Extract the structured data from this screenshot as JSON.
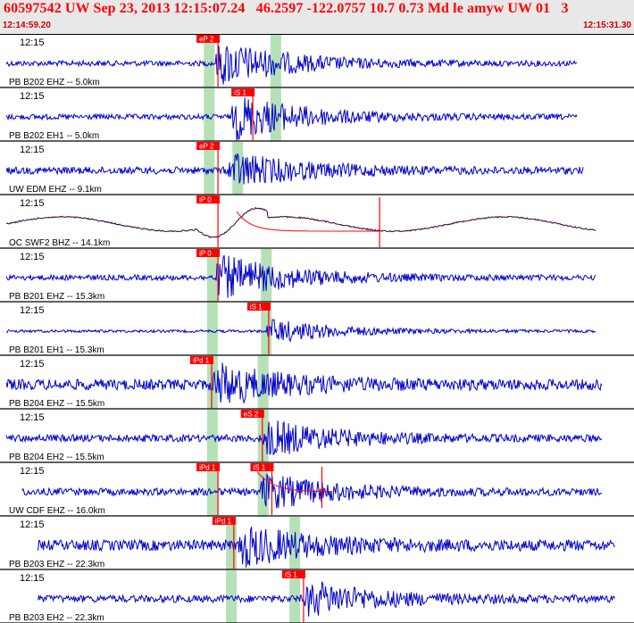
{
  "header": {
    "title": "60597542 UW Sep 23, 2013 12:15:07.24   46.2597 -122.0757 10.7 0.73 Md le amyw UW 01   3",
    "start_time": "12:14:59.20",
    "end_time": "12:15:31.30"
  },
  "colors": {
    "trace": "#0000cc",
    "trace_dark": "#330033",
    "pick": "#ff0000",
    "pick_window": "#b6e0b6",
    "divider": "#000000",
    "header_bg": "#e8e8e8",
    "title": "#ff0000"
  },
  "panels": [
    {
      "time": "12:15",
      "channel": "PB B202 EHZ -- 5.0km",
      "pick_label": "eP 2",
      "pick_time_s": 6.2,
      "windows_s": [
        6.6,
        8.7
      ],
      "signal_start_s": 6.8,
      "amplitude": "high",
      "trace_span_s": [
        0.2,
        18.2
      ],
      "style": "standard"
    },
    {
      "time": "12:15",
      "channel": "PB B202 EH1 -- 5.0km",
      "pick_label": "iS 1",
      "pick_time_s": 7.3,
      "windows_s": [
        6.6,
        8.7
      ],
      "signal_start_s": 7.3,
      "amplitude": "high",
      "trace_span_s": [
        0.2,
        18.2
      ],
      "style": "standard"
    },
    {
      "time": "12:15",
      "channel": "UW EDM EHZ -- 9.1km",
      "pick_label": "eP 2",
      "pick_time_s": 6.2,
      "windows_s": [
        6.6,
        7.5
      ],
      "signal_start_s": 7.2,
      "amplitude": "medium",
      "trace_span_s": [
        0.2,
        18.4
      ],
      "style": "standard"
    },
    {
      "time": "12:15",
      "channel": "OC SWF2 BHZ -- 14.1km",
      "pick_label": "iP 0",
      "pick_time_s": 6.2,
      "windows_s": [],
      "signal_start_s": 6.2,
      "amplitude": "long-period",
      "trace_span_s": [
        0.2,
        18.8
      ],
      "style": "long-period"
    },
    {
      "time": "12:15",
      "channel": "PB B201 EHZ -- 15.3km",
      "pick_label": "iP 0",
      "pick_time_s": 6.2,
      "windows_s": [
        6.7,
        8.4
      ],
      "signal_start_s": 6.8,
      "amplitude": "high",
      "trace_span_s": [
        0.2,
        18.8
      ],
      "style": "standard"
    },
    {
      "time": "12:15",
      "channel": "PB B201 EH1 -- 15.3km",
      "pick_label": "iS 1",
      "pick_time_s": 7.8,
      "windows_s": [
        6.7,
        8.4
      ],
      "signal_start_s": 8.4,
      "amplitude": "low",
      "trace_span_s": [
        0.2,
        18.8
      ],
      "style": "standard"
    },
    {
      "time": "12:15",
      "channel": "PB B204 EHZ -- 15.5km",
      "pick_label": "iPd 1",
      "pick_time_s": 6.0,
      "windows_s": [
        6.7,
        8.3
      ],
      "signal_start_s": 6.7,
      "amplitude": "noisy",
      "trace_span_s": [
        0.2,
        19.0
      ],
      "style": "standard"
    },
    {
      "time": "12:15",
      "channel": "PB B204 EH2 -- 15.5km",
      "pick_label": "eS 2",
      "pick_time_s": 7.6,
      "windows_s": [
        6.7,
        8.3
      ],
      "signal_start_s": 8.3,
      "amplitude": "medium",
      "trace_span_s": [
        0.2,
        19.0
      ],
      "style": "standard"
    },
    {
      "time": "12:15",
      "channel": "UW CDF EHZ -- 16.0km",
      "pick_label": "iPd 1",
      "iS_label": "iS 1",
      "pick_time_s": 6.2,
      "second_pick_time_s": 7.9,
      "windows_s": [
        6.7,
        8.3
      ],
      "signal_start_s": 8.2,
      "amplitude": "medium",
      "trace_span_s": [
        0.7,
        19.0
      ],
      "style": "standard"
    },
    {
      "time": "12:15",
      "channel": "PB B203 EHZ -- 22.3km",
      "pick_label": "iPd 1",
      "pick_time_s": 6.7,
      "windows_s": [
        7.3,
        9.3
      ],
      "signal_start_s": 7.5,
      "amplitude": "noisy",
      "trace_span_s": [
        1.2,
        19.4
      ],
      "style": "standard"
    },
    {
      "time": "12:15",
      "channel": "PB B203 EH2 -- 22.3km",
      "pick_label": "iS 1",
      "pick_time_s": 8.9,
      "windows_s": [
        7.3,
        9.3
      ],
      "signal_start_s": 9.6,
      "amplitude": "medium",
      "trace_span_s": [
        1.2,
        19.4
      ],
      "style": "standard"
    }
  ]
}
